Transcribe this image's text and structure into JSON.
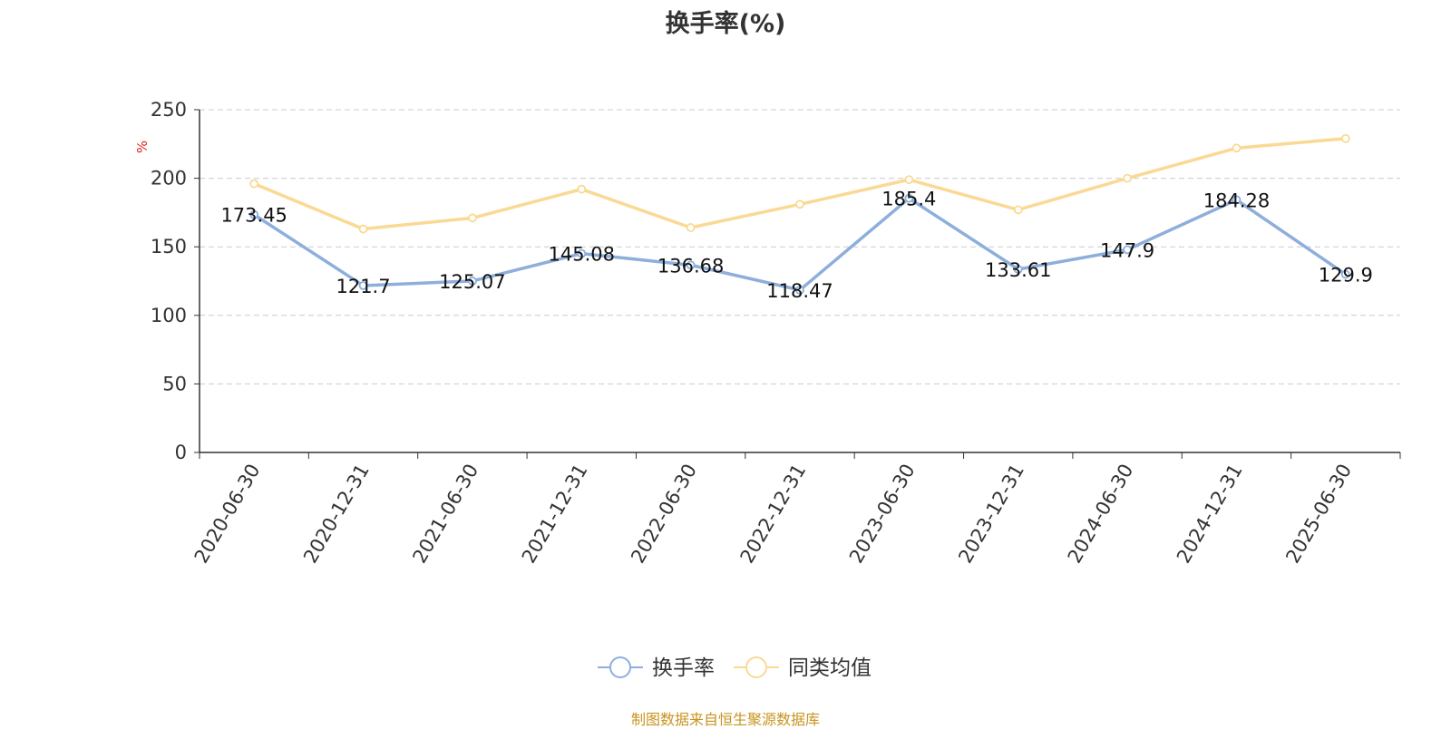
{
  "chart_data": {
    "type": "line",
    "title": "换手率(%)",
    "ylabel": "%",
    "xlabel": "",
    "categories": [
      "2020-06-30",
      "2020-12-31",
      "2021-06-30",
      "2021-12-31",
      "2022-06-30",
      "2022-12-31",
      "2023-06-30",
      "2023-12-31",
      "2024-06-30",
      "2024-12-31",
      "2025-06-30"
    ],
    "ylim": [
      0,
      250
    ],
    "yticks": [
      0,
      50,
      100,
      150,
      200,
      250
    ],
    "grid": true,
    "legend_position": "bottom",
    "series": [
      {
        "name": "换手率",
        "color": "#8eaedb",
        "labeled": true,
        "values": [
          173.45,
          121.7,
          125.07,
          145.08,
          136.68,
          118.47,
          185.4,
          133.61,
          147.9,
          184.28,
          129.9
        ]
      },
      {
        "name": "同类均值",
        "color": "#fad994",
        "labeled": false,
        "values": [
          196,
          163,
          171,
          192,
          164,
          181,
          199,
          177,
          200,
          222,
          229
        ]
      }
    ]
  },
  "source_note": "制图数据来自恒生聚源数据库",
  "colors": {
    "axis": "#333333",
    "grid": "#cccccc",
    "ylabel": "#e0201b",
    "label_text": "#111111",
    "source": "#c8941f"
  }
}
